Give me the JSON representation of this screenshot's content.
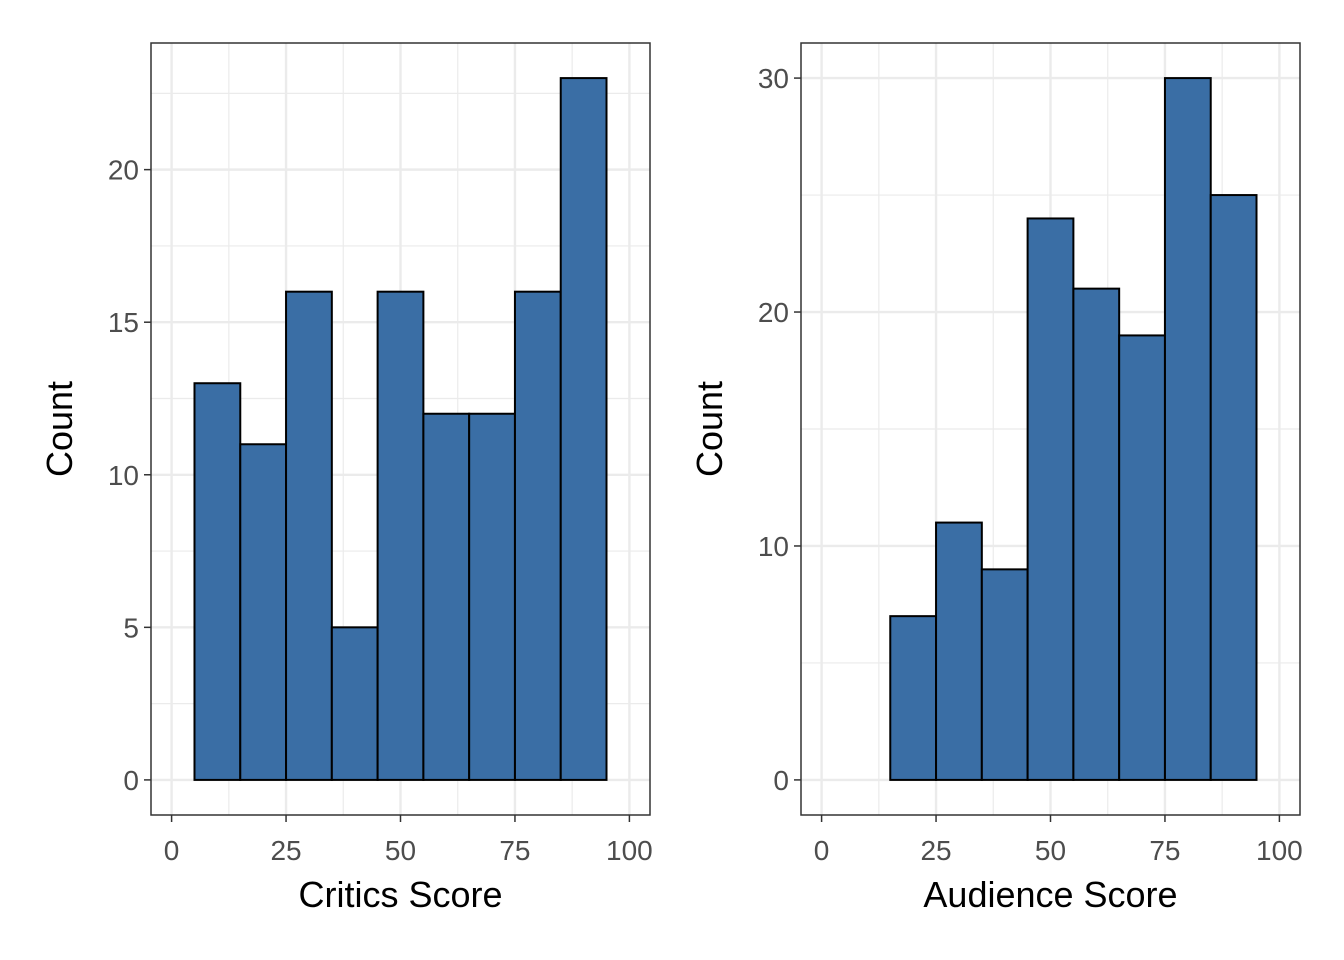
{
  "chart_data": [
    {
      "type": "bar",
      "subtype": "histogram",
      "xlabel": "Critics Score",
      "ylabel": "Count",
      "bin_width": 10,
      "bins": [
        [
          5,
          15
        ],
        [
          15,
          25
        ],
        [
          25,
          35
        ],
        [
          35,
          45
        ],
        [
          45,
          55
        ],
        [
          55,
          65
        ],
        [
          65,
          75
        ],
        [
          75,
          85
        ],
        [
          85,
          95
        ]
      ],
      "values": [
        13,
        11,
        16,
        5,
        16,
        12,
        12,
        16,
        23
      ],
      "xlim": [
        -4.5,
        104.5
      ],
      "ylim": [
        -1.15,
        24.15
      ],
      "xticks": [
        0,
        25,
        50,
        75,
        100
      ],
      "yticks": [
        0,
        5,
        10,
        15,
        20
      ],
      "grid": true
    },
    {
      "type": "bar",
      "subtype": "histogram",
      "xlabel": "Audience Score",
      "ylabel": "Count",
      "bin_width": 10,
      "bins": [
        [
          5,
          15
        ],
        [
          15,
          25
        ],
        [
          25,
          35
        ],
        [
          35,
          45
        ],
        [
          45,
          55
        ],
        [
          55,
          65
        ],
        [
          65,
          75
        ],
        [
          75,
          85
        ],
        [
          85,
          95
        ]
      ],
      "values": [
        0,
        7,
        11,
        9,
        24,
        21,
        19,
        30,
        25
      ],
      "xlim": [
        -4.5,
        104.5
      ],
      "ylim": [
        -1.5,
        31.5
      ],
      "xticks": [
        0,
        25,
        50,
        75,
        100
      ],
      "yticks": [
        0,
        10,
        20,
        30
      ],
      "grid": true
    }
  ],
  "colors": {
    "bar_fill": "#3A6EA5",
    "bar_outline": "#000000",
    "grid": "#EBEBEB",
    "panel_border": "#333333"
  }
}
